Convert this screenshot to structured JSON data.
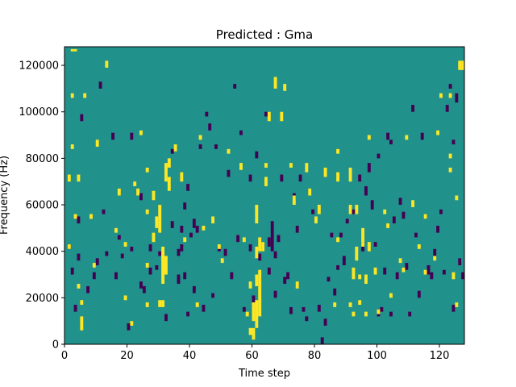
{
  "chart_data": {
    "type": "heatmap",
    "title": "Predicted : Gma",
    "xlabel": "Time step",
    "ylabel": "Frequency (Hz)",
    "xlim": [
      0,
      128
    ],
    "ylim": [
      0,
      128000
    ],
    "x_ticks": [
      0,
      20,
      40,
      60,
      80,
      100,
      120
    ],
    "y_ticks": [
      0,
      20000,
      40000,
      60000,
      80000,
      100000,
      120000
    ],
    "colormap": "viridis",
    "colors": {
      "background": "#21918c",
      "high": "#fde725",
      "low": "#440154",
      "axis": "#000000"
    },
    "n_time_steps": 128,
    "n_freq_bins": 128,
    "freq_bin_hz": 1000,
    "high_cells": [
      [
        3,
        126,
        127
      ],
      [
        4,
        126,
        127
      ],
      [
        3,
        106,
        108
      ],
      [
        7,
        106,
        108
      ],
      [
        3,
        84,
        86
      ],
      [
        2,
        70,
        73
      ],
      [
        5,
        70,
        73
      ],
      [
        4,
        54,
        56
      ],
      [
        9,
        54,
        56
      ],
      [
        2,
        41,
        43
      ],
      [
        5,
        24,
        26
      ],
      [
        6,
        17,
        19
      ],
      [
        6,
        6,
        12
      ],
      [
        9,
        54,
        56
      ],
      [
        10,
        33,
        35
      ],
      [
        11,
        85,
        88
      ],
      [
        14,
        119,
        122
      ],
      [
        17,
        48,
        50
      ],
      [
        18,
        64,
        67
      ],
      [
        20,
        19,
        21
      ],
      [
        20,
        42,
        44
      ],
      [
        22,
        8,
        10
      ],
      [
        23,
        68,
        70
      ],
      [
        24,
        64,
        67
      ],
      [
        25,
        90,
        92
      ],
      [
        27,
        16,
        18
      ],
      [
        27,
        33,
        35
      ],
      [
        27,
        56,
        58
      ],
      [
        27,
        74,
        76
      ],
      [
        29,
        62,
        66
      ],
      [
        29,
        44,
        48
      ],
      [
        30,
        50,
        55
      ],
      [
        31,
        48,
        60
      ],
      [
        31,
        16,
        19
      ],
      [
        32,
        36,
        42
      ],
      [
        32,
        26,
        40
      ],
      [
        32,
        16,
        19
      ],
      [
        33,
        70,
        78
      ],
      [
        33,
        30,
        38
      ],
      [
        34,
        66,
        72
      ],
      [
        34,
        76,
        80
      ],
      [
        36,
        83,
        86
      ],
      [
        38,
        70,
        74
      ],
      [
        39,
        44,
        46
      ],
      [
        43,
        16,
        18
      ],
      [
        44,
        88,
        90
      ],
      [
        45,
        49,
        51
      ],
      [
        48,
        52,
        55
      ],
      [
        50,
        41,
        43
      ],
      [
        51,
        35,
        37
      ],
      [
        53,
        82,
        84
      ],
      [
        57,
        75,
        78
      ],
      [
        58,
        44,
        46
      ],
      [
        59,
        12,
        14
      ],
      [
        60,
        4,
        7
      ],
      [
        60,
        24,
        27
      ],
      [
        61,
        2,
        7
      ],
      [
        61,
        10,
        18
      ],
      [
        62,
        7,
        19
      ],
      [
        62,
        25,
        30
      ],
      [
        62,
        37,
        42
      ],
      [
        62,
        52,
        60
      ],
      [
        63,
        12,
        32
      ],
      [
        63,
        40,
        46
      ],
      [
        64,
        40,
        44
      ],
      [
        65,
        68,
        72
      ],
      [
        65,
        76,
        78
      ],
      [
        66,
        96,
        100
      ],
      [
        68,
        110,
        115
      ],
      [
        70,
        96,
        100
      ],
      [
        71,
        109,
        112
      ],
      [
        73,
        76,
        78
      ],
      [
        74,
        60,
        64
      ],
      [
        75,
        24,
        27
      ],
      [
        78,
        74,
        78
      ],
      [
        79,
        64,
        67
      ],
      [
        81,
        52,
        55
      ],
      [
        82,
        56,
        60
      ],
      [
        84,
        72,
        76
      ],
      [
        87,
        16,
        18
      ],
      [
        88,
        70,
        74
      ],
      [
        88,
        82,
        84
      ],
      [
        88,
        44,
        46
      ],
      [
        92,
        16,
        18
      ],
      [
        92,
        70,
        76
      ],
      [
        92,
        56,
        60
      ],
      [
        93,
        28,
        33
      ],
      [
        93,
        12,
        14
      ],
      [
        94,
        36,
        42
      ],
      [
        94,
        56,
        60
      ],
      [
        95,
        28,
        30
      ],
      [
        95,
        17,
        19
      ],
      [
        96,
        42,
        44
      ],
      [
        96,
        44,
        50
      ],
      [
        97,
        26,
        30
      ],
      [
        97,
        12,
        14
      ],
      [
        98,
        40,
        44
      ],
      [
        98,
        88,
        90
      ],
      [
        100,
        30,
        33
      ],
      [
        101,
        13,
        15
      ],
      [
        103,
        56,
        58
      ],
      [
        104,
        50,
        52
      ],
      [
        105,
        20,
        22
      ],
      [
        108,
        35,
        37
      ],
      [
        109,
        31,
        33
      ],
      [
        110,
        88,
        90
      ],
      [
        112,
        59,
        62
      ],
      [
        114,
        41,
        43
      ],
      [
        116,
        54,
        56
      ],
      [
        116,
        30,
        32
      ],
      [
        119,
        36,
        38
      ],
      [
        120,
        90,
        92
      ],
      [
        121,
        106,
        108
      ],
      [
        124,
        106,
        108
      ],
      [
        124,
        80,
        82
      ],
      [
        124,
        74,
        76
      ],
      [
        125,
        28,
        31
      ],
      [
        126,
        16,
        18
      ],
      [
        126,
        62,
        64
      ],
      [
        127,
        118,
        122
      ],
      [
        128,
        118,
        122
      ]
    ],
    "low_cells": [
      [
        2,
        41,
        43
      ],
      [
        3,
        30,
        33
      ],
      [
        4,
        14,
        17
      ],
      [
        5,
        52,
        55
      ],
      [
        5,
        36,
        39
      ],
      [
        6,
        96,
        99
      ],
      [
        8,
        22,
        25
      ],
      [
        10,
        28,
        31
      ],
      [
        11,
        34,
        37
      ],
      [
        12,
        110,
        113
      ],
      [
        13,
        56,
        58
      ],
      [
        14,
        38,
        40
      ],
      [
        16,
        88,
        91
      ],
      [
        17,
        28,
        31
      ],
      [
        18,
        45,
        47
      ],
      [
        19,
        37,
        39
      ],
      [
        21,
        6,
        9
      ],
      [
        22,
        40,
        42
      ],
      [
        22,
        88,
        91
      ],
      [
        25,
        62,
        65
      ],
      [
        25,
        24,
        27
      ],
      [
        26,
        22,
        25
      ],
      [
        28,
        40,
        43
      ],
      [
        28,
        30,
        33
      ],
      [
        30,
        32,
        34
      ],
      [
        31,
        38,
        40
      ],
      [
        33,
        10,
        13
      ],
      [
        35,
        82,
        84
      ],
      [
        35,
        50,
        53
      ],
      [
        37,
        26,
        30
      ],
      [
        37,
        38,
        41
      ],
      [
        38,
        48,
        51
      ],
      [
        38,
        40,
        43
      ],
      [
        39,
        58,
        61
      ],
      [
        39,
        28,
        31
      ],
      [
        40,
        66,
        69
      ],
      [
        40,
        12,
        14
      ],
      [
        41,
        46,
        48
      ],
      [
        42,
        50,
        54
      ],
      [
        42,
        22,
        25
      ],
      [
        43,
        48,
        51
      ],
      [
        44,
        84,
        86
      ],
      [
        45,
        14,
        17
      ],
      [
        46,
        98,
        100
      ],
      [
        47,
        92,
        95
      ],
      [
        48,
        20,
        22
      ],
      [
        49,
        84,
        86
      ],
      [
        50,
        40,
        42
      ],
      [
        52,
        38,
        41
      ],
      [
        53,
        72,
        75
      ],
      [
        54,
        28,
        31
      ],
      [
        55,
        110,
        112
      ],
      [
        56,
        44,
        47
      ],
      [
        57,
        90,
        92
      ],
      [
        58,
        14,
        16
      ],
      [
        60,
        70,
        73
      ],
      [
        60,
        40,
        43
      ],
      [
        61,
        18,
        21
      ],
      [
        62,
        80,
        83
      ],
      [
        63,
        36,
        39
      ],
      [
        64,
        40,
        44
      ],
      [
        65,
        98,
        100
      ],
      [
        66,
        30,
        33
      ],
      [
        66,
        42,
        46
      ],
      [
        67,
        40,
        53
      ],
      [
        68,
        37,
        40
      ],
      [
        68,
        20,
        23
      ],
      [
        69,
        44,
        47
      ],
      [
        70,
        70,
        73
      ],
      [
        71,
        26,
        29
      ],
      [
        72,
        28,
        31
      ],
      [
        73,
        13,
        16
      ],
      [
        74,
        62,
        65
      ],
      [
        75,
        48,
        51
      ],
      [
        76,
        70,
        73
      ],
      [
        77,
        14,
        16
      ],
      [
        78,
        10,
        12
      ],
      [
        80,
        56,
        58
      ],
      [
        82,
        14,
        17
      ],
      [
        83,
        0,
        3
      ],
      [
        84,
        8,
        11
      ],
      [
        85,
        27,
        29
      ],
      [
        86,
        46,
        48
      ],
      [
        87,
        21,
        24
      ],
      [
        88,
        32,
        34
      ],
      [
        89,
        46,
        48
      ],
      [
        90,
        34,
        38
      ],
      [
        91,
        52,
        54
      ],
      [
        92,
        57,
        60
      ],
      [
        93,
        56,
        58
      ],
      [
        95,
        70,
        73
      ],
      [
        96,
        40,
        44
      ],
      [
        97,
        64,
        68
      ],
      [
        98,
        74,
        78
      ],
      [
        99,
        58,
        62
      ],
      [
        100,
        42,
        44
      ],
      [
        101,
        12,
        15
      ],
      [
        101,
        80,
        82
      ],
      [
        102,
        14,
        16
      ],
      [
        103,
        30,
        33
      ],
      [
        104,
        88,
        91
      ],
      [
        105,
        12,
        14
      ],
      [
        105,
        86,
        88
      ],
      [
        106,
        52,
        55
      ],
      [
        107,
        28,
        31
      ],
      [
        108,
        60,
        63
      ],
      [
        109,
        54,
        57
      ],
      [
        110,
        32,
        35
      ],
      [
        111,
        12,
        14
      ],
      [
        112,
        100,
        103
      ],
      [
        113,
        46,
        48
      ],
      [
        114,
        20,
        23
      ],
      [
        115,
        88,
        91
      ],
      [
        116,
        54,
        56
      ],
      [
        117,
        30,
        34
      ],
      [
        118,
        28,
        31
      ],
      [
        119,
        38,
        41
      ],
      [
        120,
        48,
        51
      ],
      [
        121,
        56,
        58
      ],
      [
        122,
        30,
        32
      ],
      [
        123,
        100,
        103
      ],
      [
        124,
        110,
        112
      ],
      [
        125,
        86,
        88
      ],
      [
        125,
        14,
        17
      ],
      [
        126,
        104,
        108
      ],
      [
        127,
        34,
        37
      ],
      [
        128,
        28,
        31
      ]
    ]
  }
}
